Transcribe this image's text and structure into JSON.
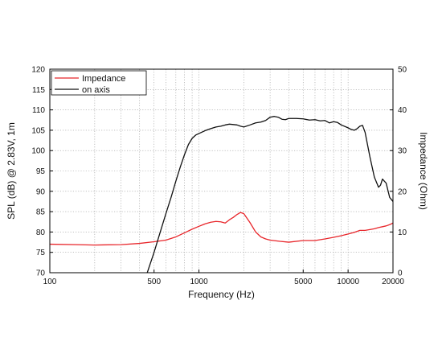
{
  "chart_data": {
    "type": "line",
    "xlabel": "Frequency (Hz)",
    "ylabel_left": "SPL (dB) @ 2.83V, 1m",
    "ylabel_right": "Impedance (Ohm)",
    "x_scale": "log",
    "xlim": [
      100,
      20000
    ],
    "ylim_left": [
      70,
      120
    ],
    "ylim_right": [
      0,
      50
    ],
    "x_ticks": [
      100,
      500,
      1000,
      5000,
      10000,
      20000
    ],
    "x_tick_labels": [
      "100",
      "500",
      "1000",
      "5000",
      "10000",
      "20000"
    ],
    "y_left_ticks": [
      70,
      75,
      80,
      85,
      90,
      95,
      100,
      105,
      110,
      115,
      120
    ],
    "y_left_tick_labels": [
      "70",
      "75",
      "80",
      "85",
      "90",
      "95",
      "100",
      "105",
      "110",
      "115",
      "120"
    ],
    "y_right_ticks": [
      0,
      10,
      20,
      30,
      40,
      50
    ],
    "y_right_tick_labels": [
      "0",
      "10",
      "20",
      "30",
      "40",
      "50"
    ],
    "grid": true,
    "legend_position": "top-left",
    "series": [
      {
        "name": "Impedance",
        "color": "#e8262b",
        "axis": "right",
        "x": [
          100,
          150,
          200,
          300,
          400,
          500,
          600,
          700,
          800,
          900,
          1000,
          1100,
          1200,
          1300,
          1400,
          1500,
          1600,
          1700,
          1800,
          1900,
          2000,
          2200,
          2400,
          2600,
          2800,
          3000,
          3500,
          4000,
          5000,
          6000,
          7000,
          8000,
          9000,
          10000,
          11000,
          12000,
          13000,
          14000,
          15000,
          16000,
          17000,
          18000,
          19000,
          20000
        ],
        "values": [
          7.0,
          6.9,
          6.8,
          6.9,
          7.2,
          7.6,
          8.0,
          8.8,
          9.8,
          10.7,
          11.4,
          12.0,
          12.4,
          12.6,
          12.5,
          12.2,
          13.0,
          13.6,
          14.3,
          14.8,
          14.5,
          12.3,
          10.0,
          8.8,
          8.3,
          8.0,
          7.7,
          7.5,
          7.9,
          7.9,
          8.3,
          8.7,
          9.1,
          9.5,
          9.9,
          10.4,
          10.4,
          10.6,
          10.8,
          11.1,
          11.3,
          11.5,
          11.8,
          12.2
        ]
      },
      {
        "name": "on axis",
        "color": "#111111",
        "axis": "left",
        "x": [
          450,
          500,
          550,
          600,
          650,
          700,
          750,
          800,
          850,
          900,
          950,
          1000,
          1100,
          1200,
          1300,
          1400,
          1500,
          1600,
          1700,
          1800,
          1900,
          2000,
          2200,
          2400,
          2600,
          2800,
          3000,
          3200,
          3400,
          3600,
          3800,
          4000,
          4500,
          5000,
          5500,
          6000,
          6500,
          7000,
          7500,
          8000,
          8500,
          9000,
          10000,
          10500,
          11000,
          11500,
          12000,
          12500,
          13000,
          14000,
          15000,
          16000,
          16500,
          17000,
          18000,
          19000,
          20000
        ],
        "values": [
          70,
          75,
          80,
          84.5,
          88.5,
          92.5,
          96,
          99,
          101.5,
          103,
          103.8,
          104.2,
          104.9,
          105.4,
          105.8,
          106.0,
          106.3,
          106.5,
          106.4,
          106.3,
          106.0,
          105.8,
          106.3,
          106.8,
          107.0,
          107.4,
          108.2,
          108.4,
          108.2,
          107.7,
          107.6,
          107.9,
          107.9,
          107.8,
          107.5,
          107.6,
          107.3,
          107.4,
          106.8,
          107.1,
          106.9,
          106.3,
          105.6,
          105.2,
          105.0,
          105.4,
          106.0,
          106.2,
          104.5,
          98.5,
          93.5,
          91.0,
          91.5,
          93.0,
          92.0,
          88.5,
          87.5
        ]
      }
    ]
  }
}
